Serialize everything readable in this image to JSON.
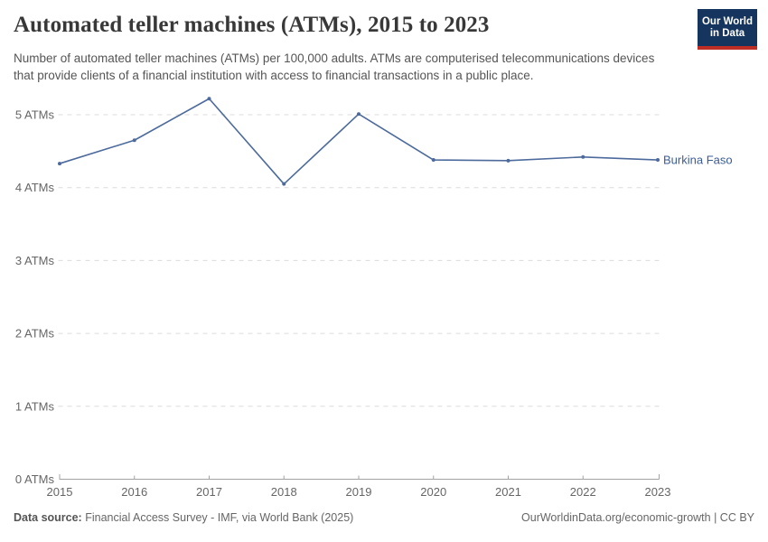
{
  "header": {
    "title": "Automated teller machines (ATMs), 2015 to 2023",
    "subtitle": "Number of automated teller machines (ATMs) per 100,000 adults. ATMs are computerised telecommunications devices that provide clients of a financial institution with access to financial transactions in a public place.",
    "logo": {
      "line1": "Our World",
      "line2": "in Data"
    }
  },
  "chart_data": {
    "type": "line",
    "title": "Automated teller machines (ATMs), 2015 to 2023",
    "x": [
      2015,
      2016,
      2017,
      2018,
      2019,
      2020,
      2021,
      2022,
      2023
    ],
    "x_tick_labels": [
      "2015",
      "2016",
      "2017",
      "2018",
      "2019",
      "2020",
      "2021",
      "2022",
      "2023"
    ],
    "series": [
      {
        "name": "Burkina Faso",
        "values": [
          4.33,
          4.65,
          5.22,
          4.05,
          5.01,
          4.38,
          4.37,
          4.42,
          4.38
        ]
      }
    ],
    "yticks": [
      0,
      1,
      2,
      3,
      4,
      5
    ],
    "y_tick_labels": [
      "0 ATMs",
      "1 ATMs",
      "2 ATMs",
      "3 ATMs",
      "4 ATMs",
      "5 ATMs"
    ],
    "ylim": [
      0,
      5.35
    ],
    "xlabel": "",
    "ylabel": "",
    "grid": "horizontal-dashed",
    "legend": "end-of-line-label"
  },
  "footer": {
    "datasource_label": "Data source:",
    "datasource_value": " Financial Access Survey - IMF, via World Bank (2025)",
    "link": "OurWorldinData.org/economic-growth",
    "separator": " | ",
    "license": "CC BY"
  },
  "colors": {
    "line": "#4c6a9c",
    "entity_label": "#3d5c94",
    "grid": "#dcdcdc",
    "axis": "#a3a3a3",
    "tick_text": "#666666",
    "logo_bg": "#16355e",
    "logo_bar": "#bf2e24"
  }
}
